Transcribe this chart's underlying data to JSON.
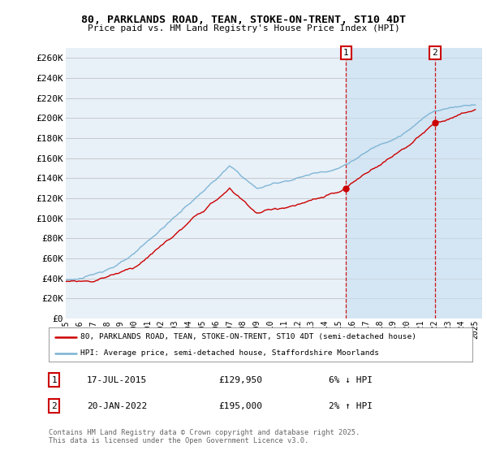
{
  "title": "80, PARKLANDS ROAD, TEAN, STOKE-ON-TRENT, ST10 4DT",
  "subtitle": "Price paid vs. HM Land Registry's House Price Index (HPI)",
  "ylabel_ticks": [
    "£0",
    "£20K",
    "£40K",
    "£60K",
    "£80K",
    "£100K",
    "£120K",
    "£140K",
    "£160K",
    "£180K",
    "£200K",
    "£220K",
    "£240K",
    "£260K"
  ],
  "ytick_values": [
    0,
    20000,
    40000,
    60000,
    80000,
    100000,
    120000,
    140000,
    160000,
    180000,
    200000,
    220000,
    240000,
    260000
  ],
  "ylim": [
    0,
    270000
  ],
  "year_start": 1995,
  "year_end": 2025,
  "sale1_year": 2015.54,
  "sale1_price": 129950,
  "sale2_year": 2022.05,
  "sale2_price": 195000,
  "legend_line1": "80, PARKLANDS ROAD, TEAN, STOKE-ON-TRENT, ST10 4DT (semi-detached house)",
  "legend_line2": "HPI: Average price, semi-detached house, Staffordshire Moorlands",
  "footer": "Contains HM Land Registry data © Crown copyright and database right 2025.\nThis data is licensed under the Open Government Licence v3.0.",
  "hpi_color": "#7ab3d4",
  "price_color": "#cc0000",
  "vline_color": "#cc0000",
  "background_color": "#dde8f0",
  "highlight_color": "#c8dff0",
  "plot_bg": "#e8f0f8"
}
